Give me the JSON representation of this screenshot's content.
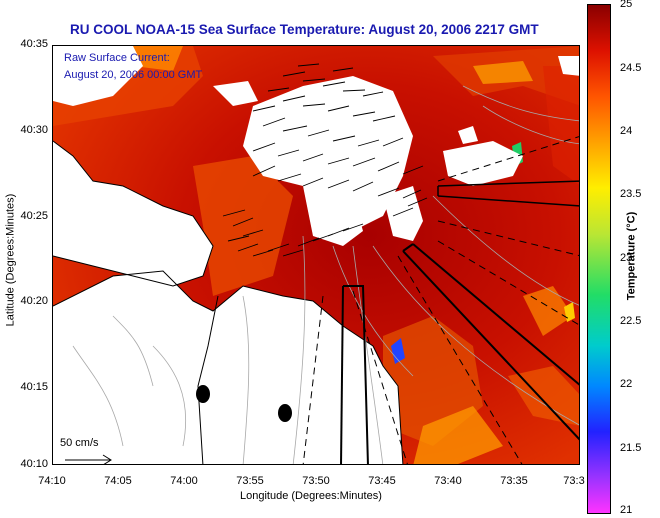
{
  "title": "RU COOL  NOAA-15  Sea Surface Temperature:  August 20, 2006 2217 GMT",
  "current_label_line1": "Raw Surface Current:",
  "current_label_line2": "August 20, 2006 00:00 GMT",
  "scale_label": "50 cm/s",
  "x_axis": {
    "label": "Longitude (Degrees:Minutes)",
    "ticks": [
      "74:10",
      "74:05",
      "74:00",
      "73:55",
      "73:50",
      "73:45",
      "73:40",
      "73:35",
      "73:3"
    ]
  },
  "y_axis": {
    "label": "Latitude (Degrees:Minutes)",
    "ticks": [
      "40:35",
      "40:30",
      "40:25",
      "40:20",
      "40:15",
      "40:10"
    ]
  },
  "colorbar": {
    "label": "Temperature (°C)",
    "ticks": [
      "25",
      "24.5",
      "24",
      "23.5",
      "23",
      "22.5",
      "22",
      "21.5",
      "21"
    ],
    "min": 21,
    "max": 25,
    "colors": [
      "#ff33ff",
      "#2222ff",
      "#00cccc",
      "#22dd66",
      "#ffee00",
      "#ff5500",
      "#dd1100",
      "#8a0000"
    ]
  },
  "map_colors": {
    "sst_warm": "#c81000",
    "sst_mid": "#e83a00",
    "sst_cool": "#ff8a00",
    "land": "#ffffff",
    "cloud": "#ffffff"
  }
}
